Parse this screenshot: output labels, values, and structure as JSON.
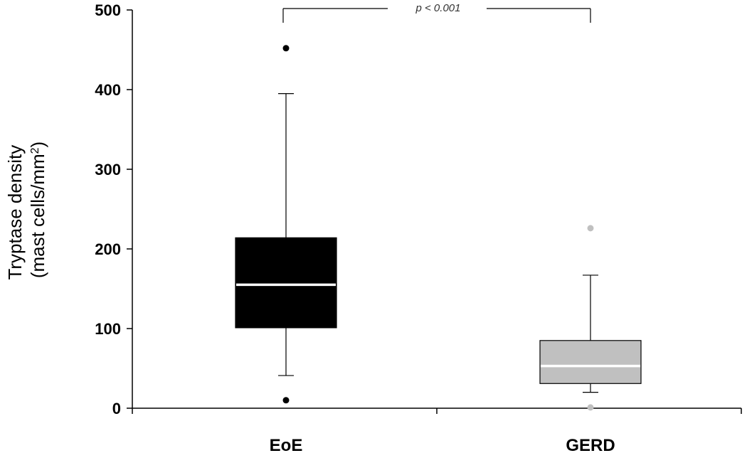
{
  "chart_data": {
    "type": "box",
    "ylabel": [
      "Tryptase density",
      "(mast cells/mm",
      "2",
      ")"
    ],
    "ylim": [
      0,
      500
    ],
    "yticks": [
      "0",
      "100",
      "200",
      "300",
      "400",
      "500"
    ],
    "categories": [
      "EoE",
      "GERD"
    ],
    "boxes": [
      {
        "category": "EoE",
        "whisker_low": 41,
        "q1": 101,
        "median": 155,
        "q3": 214,
        "whisker_high": 395,
        "outliers": [
          452,
          10
        ],
        "fill": "#000000",
        "median_color": "#ffffff",
        "outlier_color": "#000000"
      },
      {
        "category": "GERD",
        "whisker_low": 20,
        "q1": 31,
        "median": 53,
        "q3": 85,
        "whisker_high": 167,
        "outliers": [
          226,
          1
        ],
        "fill": "#c0c0c0",
        "median_color": "#ffffff",
        "outlier_color": "#c0c0c0"
      }
    ],
    "significance": {
      "label": "p < 0.001",
      "between": [
        "EoE",
        "GERD"
      ],
      "level": 500
    }
  }
}
